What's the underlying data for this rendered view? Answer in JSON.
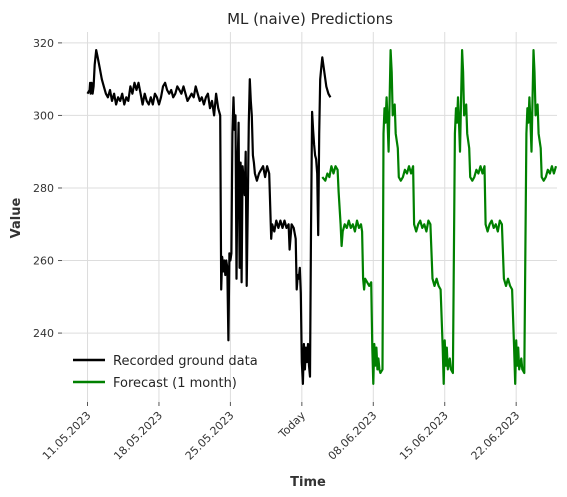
{
  "chart_data": {
    "type": "line",
    "title": "ML (naive) Predictions",
    "xlabel": "Time",
    "ylabel": "Value",
    "x_axis_unit": "days from 11.05.2023",
    "xlim": [
      -2.5,
      46
    ],
    "ylim": [
      221,
      323
    ],
    "x_ticks": [
      {
        "label": "11.05.2023",
        "day": 0
      },
      {
        "label": "18.05.2023",
        "day": 7
      },
      {
        "label": "25.05.2023",
        "day": 14
      },
      {
        "label": "Today",
        "day": 21
      },
      {
        "label": "08.06.2023",
        "day": 28
      },
      {
        "label": "15.06.2023",
        "day": 35
      },
      {
        "label": "22.06.2023",
        "day": 42
      }
    ],
    "y_ticks": [
      240,
      260,
      280,
      300,
      320
    ],
    "legend_position": "lower-left",
    "series": [
      {
        "name": "Recorded ground data",
        "color": "#000000",
        "points": [
          [
            0.0,
            306
          ],
          [
            0.2,
            307
          ],
          [
            0.25,
            309
          ],
          [
            0.3,
            306
          ],
          [
            0.4,
            309
          ],
          [
            0.5,
            306
          ],
          [
            0.6,
            308
          ],
          [
            0.7,
            314
          ],
          [
            0.85,
            318
          ],
          [
            1.0,
            316
          ],
          [
            1.2,
            313
          ],
          [
            1.4,
            310
          ],
          [
            1.6,
            308
          ],
          [
            1.8,
            306
          ],
          [
            2.0,
            305
          ],
          [
            2.2,
            307
          ],
          [
            2.4,
            304
          ],
          [
            2.6,
            306
          ],
          [
            2.8,
            303
          ],
          [
            3.0,
            305
          ],
          [
            3.2,
            304
          ],
          [
            3.4,
            306
          ],
          [
            3.6,
            303
          ],
          [
            3.8,
            305
          ],
          [
            4.0,
            304
          ],
          [
            4.2,
            308
          ],
          [
            4.4,
            306
          ],
          [
            4.6,
            309
          ],
          [
            4.8,
            307
          ],
          [
            5.0,
            309
          ],
          [
            5.2,
            306
          ],
          [
            5.4,
            303
          ],
          [
            5.6,
            306
          ],
          [
            5.8,
            304
          ],
          [
            6.0,
            303
          ],
          [
            6.2,
            305
          ],
          [
            6.4,
            303
          ],
          [
            6.6,
            306
          ],
          [
            6.8,
            305
          ],
          [
            7.0,
            303
          ],
          [
            7.2,
            305
          ],
          [
            7.4,
            308
          ],
          [
            7.6,
            309
          ],
          [
            7.8,
            307
          ],
          [
            8.0,
            306
          ],
          [
            8.2,
            307
          ],
          [
            8.4,
            305
          ],
          [
            8.6,
            306
          ],
          [
            8.8,
            308
          ],
          [
            9.0,
            307
          ],
          [
            9.2,
            306
          ],
          [
            9.4,
            308
          ],
          [
            9.6,
            306
          ],
          [
            9.8,
            304
          ],
          [
            10.0,
            305
          ],
          [
            10.2,
            306
          ],
          [
            10.4,
            305
          ],
          [
            10.6,
            308
          ],
          [
            10.8,
            306
          ],
          [
            11.0,
            304
          ],
          [
            11.2,
            305
          ],
          [
            11.4,
            303
          ],
          [
            11.6,
            305
          ],
          [
            11.8,
            306
          ],
          [
            12.0,
            302
          ],
          [
            12.2,
            304
          ],
          [
            12.4,
            300
          ],
          [
            12.6,
            306
          ],
          [
            12.8,
            302
          ],
          [
            13.0,
            300
          ],
          [
            13.1,
            252
          ],
          [
            13.2,
            261
          ],
          [
            13.3,
            257
          ],
          [
            13.4,
            260
          ],
          [
            13.5,
            256
          ],
          [
            13.6,
            260
          ],
          [
            13.7,
            258
          ],
          [
            13.8,
            238
          ],
          [
            13.9,
            262
          ],
          [
            14.0,
            260
          ],
          [
            14.1,
            262
          ],
          [
            14.2,
            295
          ],
          [
            14.3,
            305
          ],
          [
            14.4,
            296
          ],
          [
            14.5,
            300
          ],
          [
            14.6,
            255
          ],
          [
            14.7,
            285
          ],
          [
            14.8,
            298
          ],
          [
            14.9,
            258
          ],
          [
            15.0,
            287
          ],
          [
            15.1,
            254
          ],
          [
            15.2,
            286
          ],
          [
            15.3,
            282
          ],
          [
            15.4,
            278
          ],
          [
            15.5,
            290
          ],
          [
            15.6,
            253
          ],
          [
            15.7,
            275
          ],
          [
            15.8,
            298
          ],
          [
            15.9,
            310
          ],
          [
            16.0,
            304
          ],
          [
            16.1,
            300
          ],
          [
            16.2,
            289
          ],
          [
            16.3,
            287
          ],
          [
            16.4,
            284
          ],
          [
            16.6,
            282
          ],
          [
            16.8,
            284
          ],
          [
            17.0,
            285
          ],
          [
            17.2,
            286
          ],
          [
            17.4,
            283
          ],
          [
            17.6,
            286
          ],
          [
            17.8,
            284
          ],
          [
            18.0,
            266
          ],
          [
            18.1,
            270
          ],
          [
            18.3,
            268
          ],
          [
            18.5,
            271
          ],
          [
            18.7,
            269
          ],
          [
            18.9,
            271
          ],
          [
            19.1,
            269
          ],
          [
            19.3,
            271
          ],
          [
            19.5,
            269
          ],
          [
            19.7,
            270
          ],
          [
            19.8,
            263
          ],
          [
            20.0,
            270
          ],
          [
            20.2,
            269
          ],
          [
            20.4,
            266
          ],
          [
            20.5,
            252
          ],
          [
            20.6,
            256
          ],
          [
            20.7,
            255
          ],
          [
            20.8,
            258
          ],
          [
            20.9,
            251
          ],
          [
            21.0,
            232
          ],
          [
            21.1,
            226
          ],
          [
            21.2,
            237
          ],
          [
            21.3,
            230
          ],
          [
            21.4,
            236
          ],
          [
            21.5,
            232
          ],
          [
            21.6,
            237
          ],
          [
            21.7,
            231
          ],
          [
            21.8,
            228
          ],
          [
            21.9,
            268
          ],
          [
            22.0,
            301
          ],
          [
            22.1,
            296
          ],
          [
            22.2,
            292
          ],
          [
            22.3,
            289
          ],
          [
            22.4,
            288
          ],
          [
            22.5,
            284
          ],
          [
            22.6,
            267
          ],
          [
            22.7,
            295
          ],
          [
            22.8,
            310
          ],
          [
            22.9,
            313
          ],
          [
            23.0,
            316
          ],
          [
            23.2,
            312
          ],
          [
            23.4,
            308
          ],
          [
            23.6,
            306
          ],
          [
            23.8,
            305
          ]
        ]
      },
      {
        "name": "Forecast (1 month)",
        "color": "#008000",
        "points": [
          [
            23.0,
            283
          ],
          [
            23.3,
            282
          ],
          [
            23.5,
            284
          ],
          [
            23.7,
            283
          ],
          [
            23.9,
            286
          ],
          [
            24.1,
            284
          ],
          [
            24.3,
            286
          ],
          [
            24.5,
            285
          ],
          [
            24.6,
            279
          ],
          [
            24.8,
            270
          ],
          [
            24.9,
            264
          ],
          [
            25.0,
            268
          ],
          [
            25.2,
            270
          ],
          [
            25.4,
            269
          ],
          [
            25.6,
            271
          ],
          [
            25.8,
            269
          ],
          [
            26.0,
            270
          ],
          [
            26.2,
            268
          ],
          [
            26.4,
            271
          ],
          [
            26.6,
            269
          ],
          [
            26.8,
            270
          ],
          [
            26.9,
            268
          ],
          [
            27.0,
            255
          ],
          [
            27.1,
            252
          ],
          [
            27.2,
            255
          ],
          [
            27.4,
            254
          ],
          [
            27.6,
            253
          ],
          [
            27.8,
            254
          ],
          [
            27.9,
            236
          ],
          [
            28.0,
            226
          ],
          [
            28.1,
            237
          ],
          [
            28.2,
            231
          ],
          [
            28.3,
            236
          ],
          [
            28.4,
            230
          ],
          [
            28.5,
            233
          ],
          [
            28.6,
            230
          ],
          [
            28.7,
            229
          ],
          [
            28.9,
            230
          ],
          [
            29.0,
            295
          ],
          [
            29.1,
            302
          ],
          [
            29.2,
            298
          ],
          [
            29.3,
            305
          ],
          [
            29.4,
            298
          ],
          [
            29.5,
            290
          ],
          [
            29.7,
            318
          ],
          [
            29.8,
            312
          ],
          [
            29.9,
            300
          ],
          [
            30.1,
            303
          ],
          [
            30.2,
            295
          ],
          [
            30.4,
            291
          ],
          [
            30.5,
            283
          ],
          [
            30.7,
            282
          ],
          [
            30.9,
            283
          ],
          [
            31.1,
            285
          ],
          [
            31.3,
            284
          ],
          [
            31.5,
            286
          ],
          [
            31.7,
            284
          ],
          [
            31.9,
            286
          ],
          [
            32.0,
            270
          ],
          [
            32.2,
            268
          ],
          [
            32.4,
            270
          ],
          [
            32.6,
            271
          ],
          [
            32.8,
            269
          ],
          [
            33.0,
            270
          ],
          [
            33.2,
            268
          ],
          [
            33.4,
            271
          ],
          [
            33.6,
            270
          ],
          [
            33.8,
            255
          ],
          [
            34.0,
            253
          ],
          [
            34.2,
            255
          ],
          [
            34.4,
            253
          ],
          [
            34.6,
            252
          ],
          [
            34.8,
            236
          ],
          [
            34.9,
            226
          ],
          [
            35.0,
            238
          ],
          [
            35.1,
            231
          ],
          [
            35.2,
            236
          ],
          [
            35.3,
            230
          ],
          [
            35.5,
            233
          ],
          [
            35.6,
            230
          ],
          [
            35.8,
            229
          ],
          [
            36.0,
            295
          ],
          [
            36.1,
            302
          ],
          [
            36.2,
            298
          ],
          [
            36.3,
            305
          ],
          [
            36.4,
            298
          ],
          [
            36.5,
            290
          ],
          [
            36.7,
            318
          ],
          [
            36.8,
            312
          ],
          [
            36.9,
            300
          ],
          [
            37.1,
            303
          ],
          [
            37.2,
            295
          ],
          [
            37.4,
            291
          ],
          [
            37.5,
            283
          ],
          [
            37.7,
            282
          ],
          [
            37.9,
            283
          ],
          [
            38.1,
            285
          ],
          [
            38.3,
            284
          ],
          [
            38.5,
            286
          ],
          [
            38.7,
            284
          ],
          [
            38.9,
            286
          ],
          [
            39.0,
            270
          ],
          [
            39.2,
            268
          ],
          [
            39.4,
            270
          ],
          [
            39.6,
            271
          ],
          [
            39.8,
            269
          ],
          [
            40.0,
            270
          ],
          [
            40.2,
            268
          ],
          [
            40.4,
            271
          ],
          [
            40.6,
            270
          ],
          [
            40.8,
            255
          ],
          [
            41.0,
            253
          ],
          [
            41.2,
            255
          ],
          [
            41.4,
            253
          ],
          [
            41.6,
            252
          ],
          [
            41.8,
            236
          ],
          [
            41.9,
            226
          ],
          [
            42.0,
            238
          ],
          [
            42.1,
            231
          ],
          [
            42.2,
            236
          ],
          [
            42.3,
            230
          ],
          [
            42.5,
            233
          ],
          [
            42.6,
            230
          ],
          [
            42.8,
            229
          ],
          [
            43.0,
            295
          ],
          [
            43.1,
            302
          ],
          [
            43.2,
            298
          ],
          [
            43.3,
            305
          ],
          [
            43.4,
            298
          ],
          [
            43.5,
            290
          ],
          [
            43.7,
            318
          ],
          [
            43.8,
            312
          ],
          [
            43.9,
            300
          ],
          [
            44.1,
            303
          ],
          [
            44.2,
            295
          ],
          [
            44.4,
            291
          ],
          [
            44.5,
            283
          ],
          [
            44.7,
            282
          ],
          [
            44.9,
            283
          ],
          [
            45.1,
            285
          ],
          [
            45.3,
            284
          ],
          [
            45.5,
            286
          ],
          [
            45.7,
            284
          ],
          [
            45.9,
            286
          ]
        ]
      }
    ]
  }
}
